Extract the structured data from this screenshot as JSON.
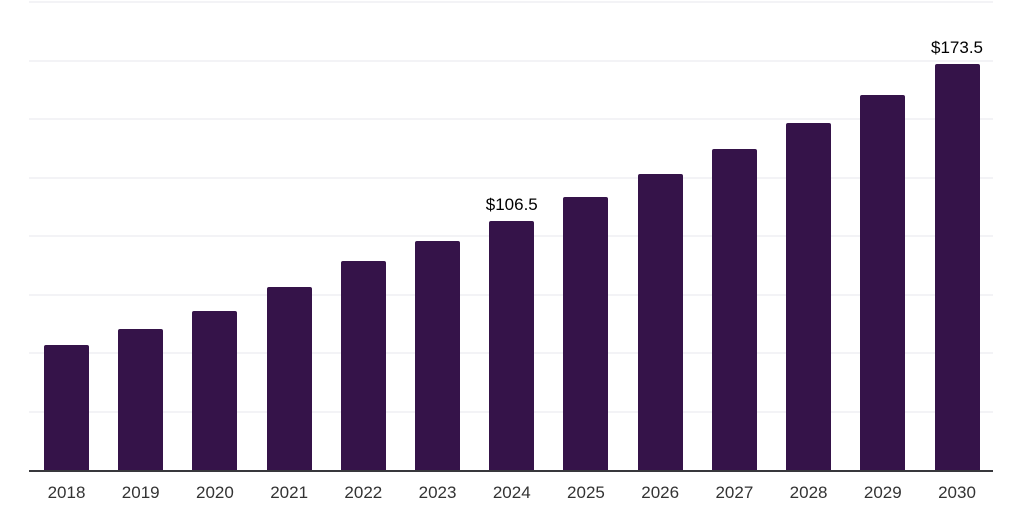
{
  "chart": {
    "background_color": "#ffffff",
    "bar_color": "#351349",
    "axis_line_color": "#38383c",
    "gridline_color": "#f3f3f6",
    "tick_label_color": "#333333",
    "data_label_color": "#000000"
  },
  "chart_data": {
    "type": "bar",
    "title": "",
    "xlabel": "",
    "ylabel": "",
    "categories": [
      "2018",
      "2019",
      "2020",
      "2021",
      "2022",
      "2023",
      "2024",
      "2025",
      "2026",
      "2027",
      "2028",
      "2029",
      "2030"
    ],
    "values": [
      53.4,
      60.3,
      68.1,
      78.4,
      89.2,
      97.8,
      106.5,
      116.5,
      126.7,
      137.1,
      148.3,
      160.2,
      173.5
    ],
    "data_labels": [
      {
        "category": "2024",
        "text": "$106.5"
      },
      {
        "category": "2030",
        "text": "$173.5"
      }
    ],
    "ylim": [
      0,
      200
    ],
    "gridline_values": [
      25,
      50,
      75,
      100,
      125,
      150,
      175,
      200
    ],
    "grid": true,
    "legend": false,
    "y_axis_tick_labels_visible": false
  }
}
